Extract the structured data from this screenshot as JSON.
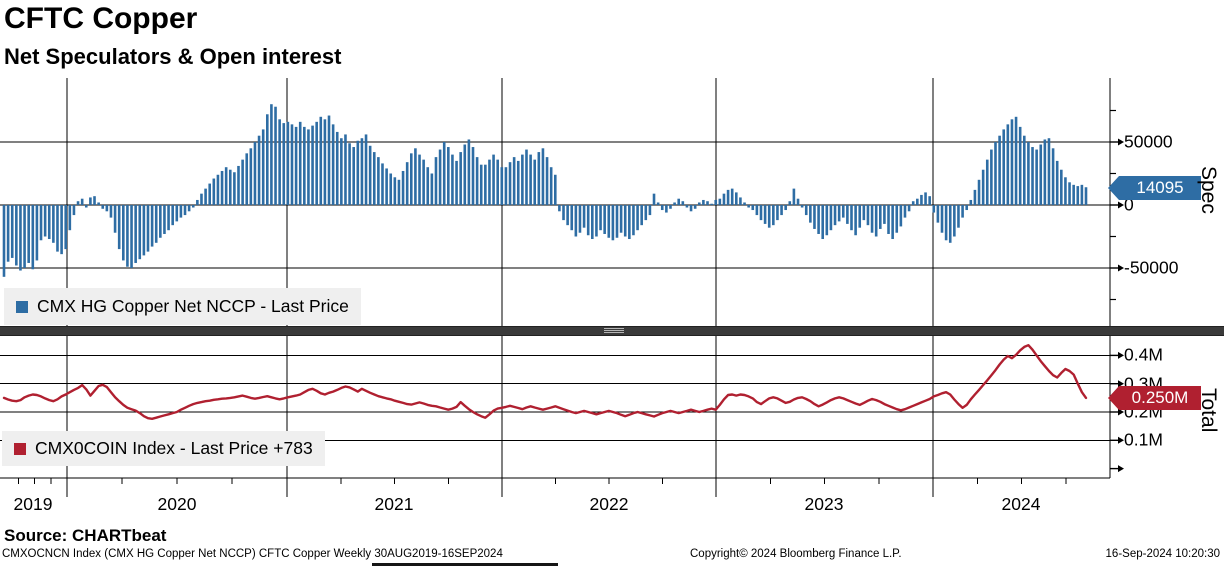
{
  "header": {
    "title": "CFTC Copper",
    "subtitle": "Net Speculators & Open interest"
  },
  "top_panel": {
    "legend_label": "CMX HG Copper Net NCCP - Last Price",
    "axis_title": "Spec",
    "y_ticks": [
      "50000",
      "0",
      "-50000"
    ],
    "last_value": "14095",
    "color": "#2e6da4"
  },
  "bottom_panel": {
    "legend_label": "CMX0COIN Index - Last Price +783",
    "axis_title": "Total",
    "y_ticks": [
      "0.4M",
      "0.3M",
      "0.2M",
      "0.1M"
    ],
    "last_value": "0.250M",
    "color": "#b02030"
  },
  "x_axis": {
    "years": [
      "2019",
      "2020",
      "2021",
      "2022",
      "2023",
      "2024"
    ]
  },
  "footer": {
    "source": "Source: CHARTbeat",
    "left": "CMXOCNCN Index (CMX HG Copper Net NCCP) CFTC Copper  Weekly 30AUG2019-16SEP2024",
    "center": "Copyright© 2024 Bloomberg Finance L.P.",
    "right": "16-Sep-2024 10:20:30"
  },
  "chart_data": [
    {
      "type": "bar",
      "title": "CMX HG Copper Net NCCP - Last Price",
      "frequency": "weekly",
      "x_start": "30AUG2019",
      "x_end": "16SEP2024",
      "ylabel": "Spec",
      "ytick_values": [
        50000,
        0,
        -50000
      ],
      "ylim": [
        -95000,
        100000
      ],
      "last_value": 14095,
      "bar_color": "#2e6da4",
      "values": [
        -57000,
        -45000,
        -42000,
        -48000,
        -52000,
        -50000,
        -46000,
        -51000,
        -44000,
        -28000,
        -25000,
        -27000,
        -30000,
        -37000,
        -39000,
        -35000,
        -20000,
        -8000,
        3000,
        5000,
        -2000,
        6000,
        7000,
        2000,
        -3000,
        -5000,
        -10000,
        -22000,
        -35000,
        -44000,
        -49000,
        -50000,
        -46000,
        -43000,
        -40000,
        -37000,
        -33000,
        -30000,
        -26000,
        -23000,
        -20000,
        -16000,
        -13000,
        -10000,
        -8000,
        -5000,
        -2000,
        4000,
        9000,
        13000,
        17000,
        21000,
        24000,
        27000,
        30000,
        28000,
        26000,
        31000,
        36000,
        41000,
        45000,
        50000,
        55000,
        60000,
        72000,
        80000,
        78000,
        68000,
        65000,
        66000,
        64000,
        62000,
        66000,
        62000,
        60000,
        63000,
        66000,
        70000,
        68000,
        71000,
        64000,
        58000,
        53000,
        56000,
        49000,
        46000,
        51000,
        53000,
        56000,
        47000,
        42000,
        38000,
        33000,
        29000,
        25000,
        22000,
        20000,
        27000,
        34000,
        41000,
        45000,
        40000,
        36000,
        30000,
        25000,
        38000,
        44000,
        50000,
        46000,
        40000,
        35000,
        42000,
        48000,
        52000,
        46000,
        38000,
        32000,
        32000,
        36000,
        40000,
        36000,
        30000,
        30000,
        34000,
        38000,
        35000,
        40000,
        44000,
        40000,
        36000,
        42000,
        45000,
        38000,
        30000,
        24000,
        -5000,
        -12000,
        -16000,
        -20000,
        -25000,
        -22000,
        -18000,
        -24000,
        -27000,
        -25000,
        -20000,
        -23000,
        -26000,
        -28000,
        -26000,
        -22000,
        -25000,
        -27000,
        -24000,
        -20000,
        -16000,
        -12000,
        -8000,
        9000,
        2000,
        -4000,
        -6000,
        -3000,
        2000,
        5000,
        3000,
        -2000,
        -5000,
        -3000,
        2000,
        4000,
        3000,
        1000,
        4000,
        5000,
        9000,
        12000,
        13000,
        10000,
        6000,
        2000,
        -2000,
        -4000,
        -8000,
        -12000,
        -15000,
        -18000,
        -16000,
        -12000,
        -8000,
        -4000,
        3000,
        13000,
        5000,
        -2000,
        -8000,
        -14000,
        -19000,
        -23000,
        -27000,
        -24000,
        -20000,
        -16000,
        -13000,
        -10000,
        -15000,
        -20000,
        -24000,
        -18000,
        -12000,
        -16000,
        -22000,
        -25000,
        -19000,
        -15000,
        -23000,
        -27000,
        -22000,
        -17000,
        -10000,
        -5000,
        3000,
        5000,
        8000,
        10000,
        7000,
        -6000,
        -14000,
        -22000,
        -28000,
        -30000,
        -25000,
        -18000,
        -10000,
        -4000,
        4000,
        12000,
        20000,
        28000,
        36000,
        44000,
        50000,
        55000,
        60000,
        64000,
        68000,
        70000,
        62000,
        55000,
        50000,
        46000,
        44000,
        48000,
        52000,
        53000,
        45000,
        35000,
        28000,
        22000,
        18000,
        16000,
        15000,
        16000,
        14095
      ]
    },
    {
      "type": "line",
      "title": "CMX0COIN Index - Last Price +783",
      "frequency": "weekly",
      "x_start": "30AUG2019",
      "x_end": "16SEP2024",
      "ylabel": "Total",
      "unit": "M",
      "ytick_values": [
        0.4,
        0.3,
        0.2,
        0.1
      ],
      "ylim": [
        0.0,
        0.47
      ],
      "last_value": 0.25,
      "line_color": "#b02030",
      "values": [
        0.25,
        0.244,
        0.24,
        0.238,
        0.242,
        0.252,
        0.258,
        0.262,
        0.26,
        0.255,
        0.248,
        0.242,
        0.238,
        0.245,
        0.255,
        0.262,
        0.27,
        0.278,
        0.285,
        0.295,
        0.28,
        0.258,
        0.275,
        0.292,
        0.296,
        0.288,
        0.27,
        0.252,
        0.238,
        0.225,
        0.215,
        0.21,
        0.205,
        0.196,
        0.185,
        0.178,
        0.176,
        0.18,
        0.184,
        0.188,
        0.192,
        0.196,
        0.2,
        0.208,
        0.215,
        0.222,
        0.228,
        0.232,
        0.235,
        0.238,
        0.24,
        0.243,
        0.245,
        0.247,
        0.248,
        0.25,
        0.252,
        0.255,
        0.258,
        0.254,
        0.25,
        0.247,
        0.25,
        0.253,
        0.256,
        0.252,
        0.248,
        0.245,
        0.248,
        0.252,
        0.255,
        0.258,
        0.262,
        0.27,
        0.278,
        0.282,
        0.275,
        0.266,
        0.262,
        0.268,
        0.272,
        0.278,
        0.285,
        0.29,
        0.287,
        0.28,
        0.272,
        0.282,
        0.275,
        0.268,
        0.262,
        0.256,
        0.252,
        0.248,
        0.245,
        0.24,
        0.236,
        0.232,
        0.228,
        0.226,
        0.23,
        0.234,
        0.23,
        0.225,
        0.222,
        0.22,
        0.216,
        0.212,
        0.208,
        0.212,
        0.218,
        0.235,
        0.222,
        0.21,
        0.2,
        0.192,
        0.185,
        0.18,
        0.192,
        0.205,
        0.212,
        0.215,
        0.218,
        0.222,
        0.218,
        0.214,
        0.21,
        0.216,
        0.22,
        0.216,
        0.212,
        0.208,
        0.212,
        0.216,
        0.22,
        0.215,
        0.21,
        0.205,
        0.2,
        0.196,
        0.2,
        0.204,
        0.2,
        0.196,
        0.192,
        0.196,
        0.2,
        0.204,
        0.2,
        0.196,
        0.19,
        0.185,
        0.19,
        0.196,
        0.2,
        0.196,
        0.192,
        0.188,
        0.184,
        0.19,
        0.196,
        0.2,
        0.204,
        0.2,
        0.196,
        0.2,
        0.204,
        0.208,
        0.204,
        0.2,
        0.204,
        0.208,
        0.212,
        0.208,
        0.225,
        0.245,
        0.26,
        0.262,
        0.258,
        0.262,
        0.26,
        0.255,
        0.248,
        0.235,
        0.228,
        0.238,
        0.248,
        0.252,
        0.248,
        0.24,
        0.232,
        0.236,
        0.244,
        0.25,
        0.252,
        0.246,
        0.238,
        0.228,
        0.22,
        0.226,
        0.234,
        0.242,
        0.248,
        0.252,
        0.248,
        0.242,
        0.236,
        0.23,
        0.225,
        0.232,
        0.24,
        0.246,
        0.242,
        0.236,
        0.228,
        0.222,
        0.216,
        0.21,
        0.206,
        0.21,
        0.216,
        0.222,
        0.228,
        0.234,
        0.24,
        0.246,
        0.255,
        0.26,
        0.266,
        0.27,
        0.262,
        0.244,
        0.228,
        0.215,
        0.225,
        0.245,
        0.262,
        0.278,
        0.295,
        0.312,
        0.33,
        0.348,
        0.368,
        0.385,
        0.398,
        0.39,
        0.402,
        0.418,
        0.43,
        0.436,
        0.42,
        0.4,
        0.38,
        0.362,
        0.345,
        0.33,
        0.322,
        0.338,
        0.352,
        0.345,
        0.332,
        0.3,
        0.27,
        0.25
      ]
    }
  ]
}
